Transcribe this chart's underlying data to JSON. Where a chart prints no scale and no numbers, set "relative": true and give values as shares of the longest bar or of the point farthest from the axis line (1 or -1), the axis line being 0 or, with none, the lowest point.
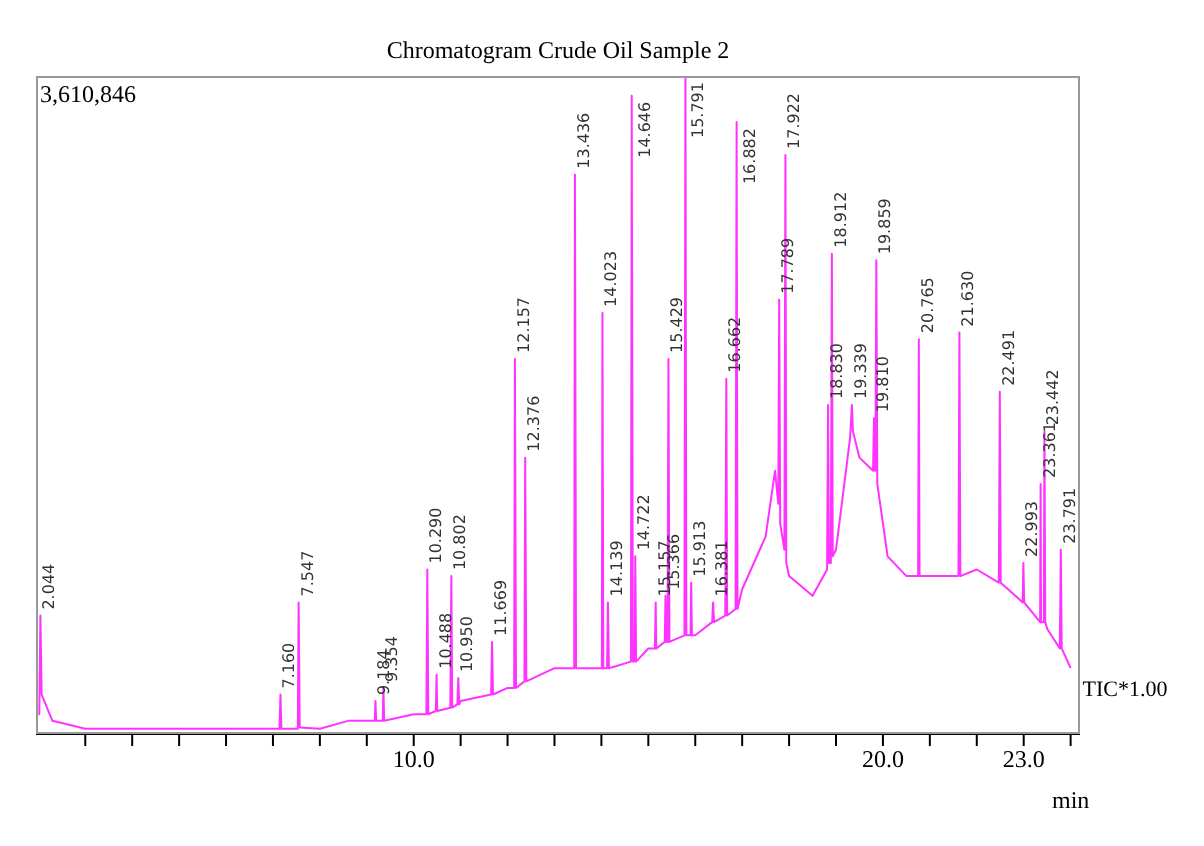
{
  "chart_data": {
    "type": "line",
    "title": "Chromatogram Crude Oil Sample 2",
    "xlabel": "min",
    "relative": true,
    "legend": false,
    "marker": "none",
    "line_style": "solid",
    "grid": false,
    "xlim": [
      1.95,
      24.2
    ],
    "xticks": [
      {
        "value": 3,
        "label": null
      },
      {
        "value": 4,
        "label": null
      },
      {
        "value": 5,
        "label": null
      },
      {
        "value": 6,
        "label": null
      },
      {
        "value": 7,
        "label": null
      },
      {
        "value": 8,
        "label": null
      },
      {
        "value": 9,
        "label": null
      },
      {
        "value": 10,
        "label": "10.0"
      },
      {
        "value": 11,
        "label": null
      },
      {
        "value": 12,
        "label": null
      },
      {
        "value": 13,
        "label": null
      },
      {
        "value": 14,
        "label": null
      },
      {
        "value": 15,
        "label": null
      },
      {
        "value": 16,
        "label": null
      },
      {
        "value": 17,
        "label": null
      },
      {
        "value": 18,
        "label": null
      },
      {
        "value": 19,
        "label": null
      },
      {
        "value": 20,
        "label": "20.0"
      },
      {
        "value": 21,
        "label": null
      },
      {
        "value": 22,
        "label": null
      },
      {
        "value": 23,
        "label": "23.0"
      },
      {
        "value": 24,
        "label": null
      }
    ],
    "series": [
      {
        "name": "TIC*1.00",
        "color": "#ff33ff",
        "x": [
          2.0,
          2.02,
          2.044,
          2.07,
          2.3,
          3,
          7.14,
          7.16,
          7.18,
          7.53,
          7.547,
          7.57,
          8,
          8.6,
          9,
          9.17,
          9.184,
          9.2,
          9.34,
          9.354,
          9.37,
          10,
          10.27,
          10.29,
          10.31,
          10.47,
          10.488,
          10.5,
          10.78,
          10.802,
          10.82,
          10.93,
          10.95,
          10.97,
          11,
          11.65,
          11.669,
          11.69,
          12,
          12.14,
          12.157,
          12.18,
          12.36,
          12.376,
          12.4,
          13,
          13.42,
          13.436,
          13.46,
          14,
          14.01,
          14.023,
          14.04,
          14.12,
          14.139,
          14.16,
          14.63,
          14.646,
          14.67,
          14.71,
          14.722,
          14.74,
          15,
          15.14,
          15.157,
          15.17,
          15.35,
          15.366,
          15.38,
          15.41,
          15.429,
          15.45,
          15.77,
          15.791,
          15.81,
          15.9,
          15.913,
          15.93,
          16,
          16.36,
          16.381,
          16.4,
          16.64,
          16.662,
          16.68,
          16.86,
          16.882,
          16.9,
          17,
          17.5,
          17.7,
          17.77,
          17.789,
          17.81,
          17.9,
          17.922,
          17.94,
          18,
          18.5,
          18.81,
          18.83,
          18.85,
          18.89,
          18.912,
          18.93,
          19,
          19.3,
          19.339,
          19.36,
          19.5,
          19.79,
          19.81,
          19.83,
          19.84,
          19.859,
          19.88,
          20.1,
          20.5,
          20.75,
          20.765,
          20.78,
          21,
          21.61,
          21.63,
          21.65,
          22,
          22.47,
          22.491,
          22.51,
          22.98,
          22.993,
          23.01,
          23.35,
          23.361,
          23.37,
          23.43,
          23.442,
          23.46,
          23.5,
          23.77,
          23.791,
          23.81,
          24
        ],
        "values": [
          0.03,
          0.03,
          0.18,
          0.06,
          0.02,
          0.008,
          0.008,
          0.06,
          0.008,
          0.008,
          0.2,
          0.01,
          0.008,
          0.02,
          0.02,
          0.02,
          0.05,
          0.02,
          0.02,
          0.07,
          0.02,
          0.03,
          0.03,
          0.25,
          0.03,
          0.035,
          0.09,
          0.035,
          0.04,
          0.24,
          0.04,
          0.045,
          0.085,
          0.045,
          0.05,
          0.06,
          0.14,
          0.06,
          0.07,
          0.07,
          0.57,
          0.07,
          0.08,
          0.42,
          0.08,
          0.1,
          0.1,
          0.85,
          0.1,
          0.1,
          0.1,
          0.64,
          0.1,
          0.1,
          0.2,
          0.1,
          0.11,
          0.97,
          0.11,
          0.11,
          0.27,
          0.11,
          0.13,
          0.13,
          0.2,
          0.13,
          0.14,
          0.21,
          0.14,
          0.14,
          0.57,
          0.14,
          0.15,
          1.0,
          0.15,
          0.15,
          0.23,
          0.15,
          0.15,
          0.17,
          0.2,
          0.17,
          0.18,
          0.54,
          0.18,
          0.19,
          0.93,
          0.19,
          0.22,
          0.3,
          0.4,
          0.35,
          0.66,
          0.32,
          0.28,
          0.88,
          0.26,
          0.24,
          0.21,
          0.25,
          0.5,
          0.26,
          0.26,
          0.73,
          0.27,
          0.28,
          0.45,
          0.5,
          0.46,
          0.42,
          0.4,
          0.48,
          0.4,
          0.4,
          0.72,
          0.38,
          0.27,
          0.24,
          0.24,
          0.6,
          0.24,
          0.24,
          0.24,
          0.61,
          0.24,
          0.25,
          0.23,
          0.52,
          0.23,
          0.2,
          0.26,
          0.2,
          0.17,
          0.38,
          0.17,
          0.17,
          0.46,
          0.17,
          0.16,
          0.13,
          0.28,
          0.13,
          0.1
        ]
      }
    ],
    "annotations": [
      "3,610,846",
      {
        "text": "2.044",
        "x": 2.044,
        "y": 0.18
      },
      {
        "text": "7.160",
        "x": 7.16,
        "y": 0.06
      },
      {
        "text": "7.547",
        "x": 7.547,
        "y": 0.2
      },
      {
        "text": "9.184",
        "x": 9.184,
        "y": 0.05
      },
      {
        "text": "9.354",
        "x": 9.354,
        "y": 0.07
      },
      {
        "text": "10.290",
        "x": 10.29,
        "y": 0.25
      },
      {
        "text": "10.488",
        "x": 10.488,
        "y": 0.09
      },
      {
        "text": "10.802",
        "x": 10.802,
        "y": 0.24
      },
      {
        "text": "10.950",
        "x": 10.95,
        "y": 0.085
      },
      {
        "text": "11.669",
        "x": 11.669,
        "y": 0.14
      },
      {
        "text": "12.157",
        "x": 12.157,
        "y": 0.57
      },
      {
        "text": "12.376",
        "x": 12.376,
        "y": 0.42
      },
      {
        "text": "13.436",
        "x": 13.436,
        "y": 0.85
      },
      {
        "text": "14.023",
        "x": 14.023,
        "y": 0.64
      },
      {
        "text": "14.139",
        "x": 14.139,
        "y": 0.2
      },
      {
        "text": "14.646",
        "x": 14.646,
        "y": 0.97
      },
      {
        "text": "14.722",
        "x": 14.722,
        "y": 0.27
      },
      {
        "text": "15.157",
        "x": 15.157,
        "y": 0.2
      },
      {
        "text": "15.366",
        "x": 15.366,
        "y": 0.21
      },
      {
        "text": "15.429",
        "x": 15.429,
        "y": 0.57
      },
      {
        "text": "15.791",
        "x": 15.791,
        "y": 1.0
      },
      {
        "text": "15.913",
        "x": 15.913,
        "y": 0.23
      },
      {
        "text": "16.381",
        "x": 16.381,
        "y": 0.2
      },
      {
        "text": "16.662",
        "x": 16.662,
        "y": 0.54
      },
      {
        "text": "16.882",
        "x": 16.882,
        "y": 0.93
      },
      {
        "text": "17.789",
        "x": 17.789,
        "y": 0.66
      },
      {
        "text": "17.922",
        "x": 17.922,
        "y": 0.88
      },
      {
        "text": "18.830",
        "x": 18.83,
        "y": 0.5
      },
      {
        "text": "18.912",
        "x": 18.912,
        "y": 0.73
      },
      {
        "text": "19.339",
        "x": 19.339,
        "y": 0.5
      },
      {
        "text": "19.810",
        "x": 19.81,
        "y": 0.48
      },
      {
        "text": "19.859",
        "x": 19.859,
        "y": 0.72
      },
      {
        "text": "20.765",
        "x": 20.765,
        "y": 0.6
      },
      {
        "text": "21.630",
        "x": 21.63,
        "y": 0.61
      },
      {
        "text": "22.491",
        "x": 22.491,
        "y": 0.52
      },
      {
        "text": "22.993",
        "x": 22.993,
        "y": 0.26
      },
      {
        "text": "23.361",
        "x": 23.361,
        "y": 0.38
      },
      {
        "text": "23.442",
        "x": 23.442,
        "y": 0.46
      },
      {
        "text": "23.791",
        "x": 23.791,
        "y": 0.28
      }
    ]
  }
}
